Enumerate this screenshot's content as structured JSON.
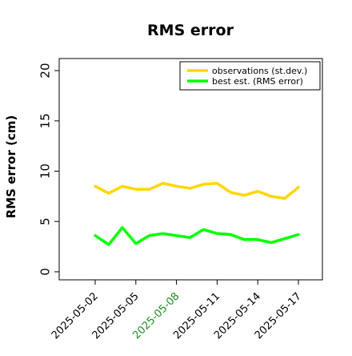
{
  "chart_data": {
    "type": "line",
    "title": "RMS error",
    "xlabel": "",
    "ylabel": "RMS error (cm)",
    "ylim": [
      -0.8,
      21.2
    ],
    "yticks": [
      0,
      5,
      10,
      15,
      20
    ],
    "x": [
      "2025-05-02",
      "2025-05-03",
      "2025-05-04",
      "2025-05-05",
      "2025-05-06",
      "2025-05-07",
      "2025-05-08",
      "2025-05-09",
      "2025-05-10",
      "2025-05-11",
      "2025-05-12",
      "2025-05-13",
      "2025-05-14",
      "2025-05-15",
      "2025-05-16",
      "2025-05-17"
    ],
    "xticks": [
      {
        "label": "2025-05-02",
        "color": "#000000"
      },
      {
        "label": "2025-05-05",
        "color": "#000000"
      },
      {
        "label": "2025-05-08",
        "color": "#228B22"
      },
      {
        "label": "2025-05-11",
        "color": "#000000"
      },
      {
        "label": "2025-05-14",
        "color": "#000000"
      },
      {
        "label": "2025-05-17",
        "color": "#000000"
      }
    ],
    "grid": false,
    "legend_position": "top-right",
    "series": [
      {
        "name": "observations (st.dev.)",
        "color": "#FFD700",
        "values": [
          8.5,
          7.8,
          8.5,
          8.2,
          8.2,
          8.8,
          8.5,
          8.3,
          8.7,
          8.8,
          7.9,
          7.6,
          8.0,
          7.5,
          7.3,
          8.4
        ]
      },
      {
        "name": "best est. (RMS error)",
        "color": "#00FF00",
        "values": [
          3.6,
          2.7,
          4.4,
          2.8,
          3.6,
          3.8,
          3.6,
          3.4,
          4.2,
          3.8,
          3.7,
          3.2,
          3.2,
          2.9,
          3.3,
          3.7
        ]
      }
    ]
  }
}
